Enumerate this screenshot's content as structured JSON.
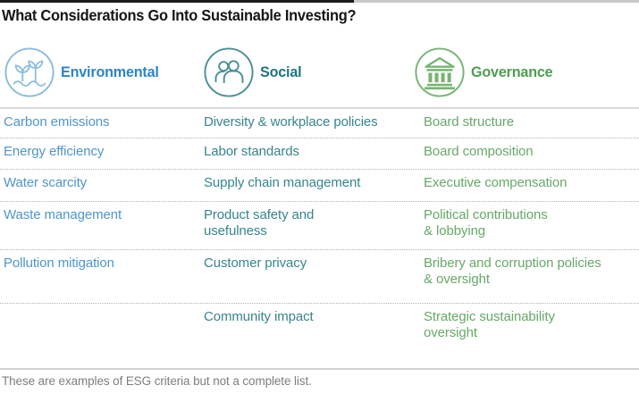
{
  "title": "What Considerations Go Into Sustainable Investing?",
  "footnote": "These are examples of ESG criteria but not a complete list.",
  "colors": {
    "environmental_header": "#2C85C7",
    "environmental_items": "#4E96C8",
    "environmental_icon": "#8ABCDE",
    "social_header": "#1F767E",
    "social_items": "#37858D",
    "social_icon": "#4A9097",
    "governance_header": "#4C9F4F",
    "governance_items": "#67A967",
    "governance_icon": "#77B373",
    "title_text": "#161616",
    "footnote_text": "#7E7E7E"
  },
  "columns": [
    {
      "label": "Environmental",
      "icon": "seedling-water-icon",
      "items": [
        "Carbon emissions",
        "Energy efficiency",
        "Water scarcity",
        "Waste management",
        "Pollution mitigation",
        ""
      ]
    },
    {
      "label": "Social",
      "icon": "people-icon",
      "items": [
        "Diversity & workplace policies",
        "Labor standards",
        "Supply chain management",
        "Product safety and\nusefulness",
        "Customer privacy",
        "Community impact"
      ]
    },
    {
      "label": "Governance",
      "icon": "bank-building-icon",
      "items": [
        "Board structure",
        "Board composition",
        "Executive compensation",
        "Political contributions\n& lobbying",
        "Bribery and corruption policies\n& oversight",
        "Strategic sustainability\noversight"
      ]
    }
  ]
}
